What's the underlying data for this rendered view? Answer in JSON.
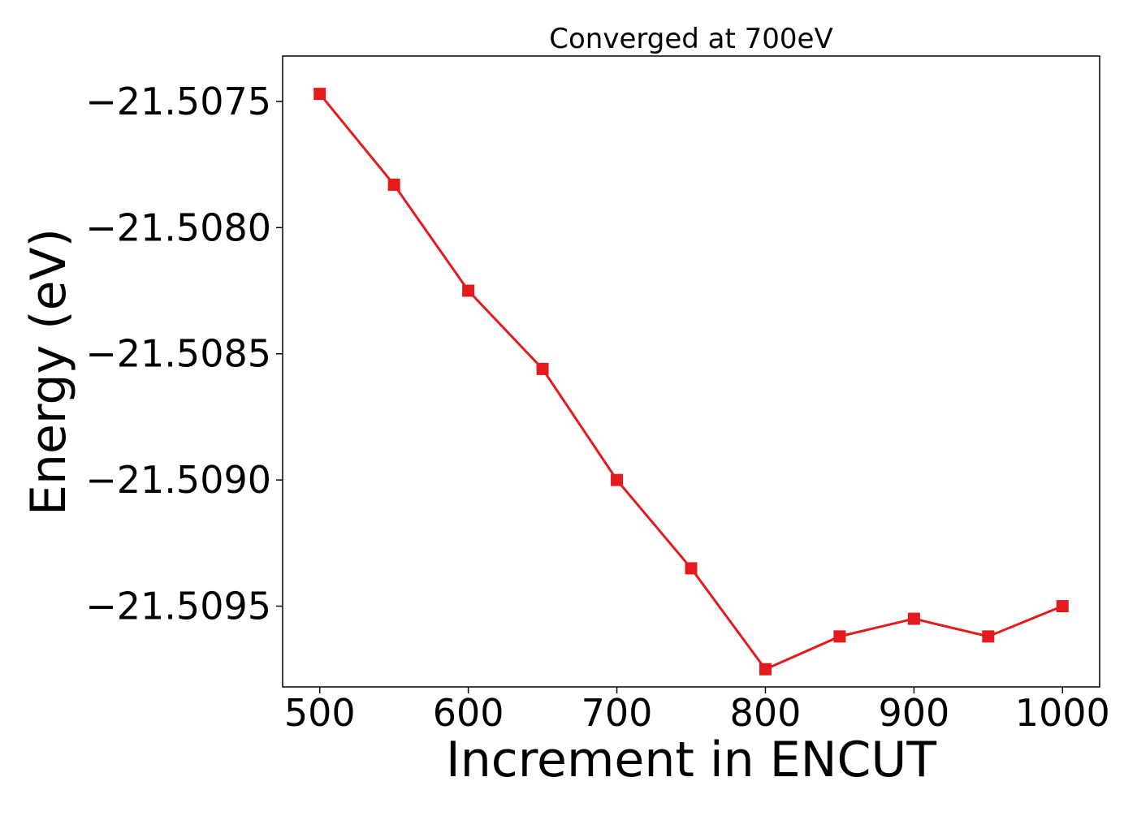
{
  "chart_data": {
    "type": "line",
    "title": "Converged at 700eV",
    "xlabel": "Increment in ENCUT",
    "ylabel": "Energy (eV)",
    "x": [
      500,
      550,
      600,
      650,
      700,
      750,
      800,
      850,
      900,
      950,
      1000
    ],
    "series": [
      {
        "values": [
          -21.50747,
          -21.50783,
          -21.50825,
          -21.50856,
          -21.509,
          -21.50935,
          -21.50975,
          -21.50962,
          -21.50955,
          -21.50962,
          -21.5095
        ],
        "color": "#e41a1c",
        "marker": "square"
      }
    ],
    "xticks": [
      500,
      600,
      700,
      800,
      900,
      1000
    ],
    "xtick_labels": [
      "500",
      "600",
      "700",
      "800",
      "900",
      "1000"
    ],
    "yticks": [
      -21.5075,
      -21.508,
      -21.5085,
      -21.509,
      -21.5095
    ],
    "ytick_labels": [
      "−21.5075",
      "−21.5080",
      "−21.5085",
      "−21.5090",
      "−21.5095"
    ],
    "xlim": [
      475,
      1025
    ],
    "ylim": [
      -21.50982,
      -21.50732
    ],
    "grid": false,
    "legend": "none"
  }
}
